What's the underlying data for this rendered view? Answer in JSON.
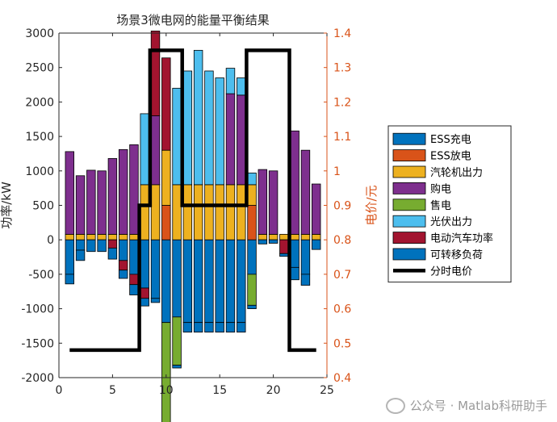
{
  "chart_data": {
    "type": "bar",
    "title": "场景3微电网的能量平衡结果",
    "xlabel": "",
    "ylabel": "功率/kW",
    "y2label": "电价/元",
    "xlim": [
      0,
      25
    ],
    "ylim": [
      -2000,
      3000
    ],
    "y2lim": [
      0.4,
      1.4
    ],
    "xticks": [
      "0",
      "5",
      "10",
      "15",
      "20",
      "25"
    ],
    "yticks": [
      "-2000",
      "-1500",
      "-1000",
      "-500",
      "0",
      "500",
      "1000",
      "1500",
      "2000",
      "2500",
      "3000"
    ],
    "y2ticks": [
      "0.4",
      "0.5",
      "0.6",
      "0.7",
      "0.8",
      "0.9",
      "1",
      "1.1",
      "1.2",
      "1.3",
      "1.4"
    ],
    "hours": [
      1,
      2,
      3,
      4,
      5,
      6,
      7,
      8,
      9,
      10,
      11,
      12,
      13,
      14,
      15,
      16,
      17,
      18,
      19,
      20,
      21,
      22,
      23,
      24
    ],
    "series": [
      {
        "name": "ESS充电",
        "color": "#0072bd",
        "values": [
          -500,
          -150,
          0,
          0,
          0,
          -300,
          -500,
          -700,
          -850,
          -1200,
          -1120,
          -1200,
          -1200,
          -1200,
          -1200,
          -1200,
          -1200,
          -500,
          0,
          0,
          0,
          -400,
          -500,
          0
        ]
      },
      {
        "name": "ESS放电",
        "color": "#d95319",
        "values": [
          0,
          0,
          0,
          0,
          0,
          0,
          0,
          0,
          0,
          500,
          0,
          0,
          0,
          0,
          0,
          0,
          0,
          500,
          0,
          0,
          0,
          0,
          0,
          0
        ]
      },
      {
        "name": "汽轮机出力",
        "color": "#edb120",
        "values": [
          80,
          80,
          80,
          80,
          80,
          80,
          80,
          800,
          800,
          800,
          800,
          800,
          800,
          800,
          800,
          800,
          800,
          300,
          80,
          80,
          80,
          80,
          80,
          80
        ]
      },
      {
        "name": "购电",
        "color": "#7e2f8e",
        "values": [
          1200,
          850,
          930,
          920,
          1100,
          1230,
          1300,
          0,
          1000,
          0,
          0,
          0,
          0,
          0,
          0,
          1320,
          1300,
          0,
          940,
          920,
          0,
          1500,
          1220,
          730
        ]
      },
      {
        "name": "售电",
        "color": "#77ac30",
        "values": [
          0,
          0,
          0,
          0,
          0,
          0,
          0,
          0,
          0,
          -1500,
          -700,
          0,
          0,
          0,
          0,
          0,
          0,
          -450,
          0,
          0,
          0,
          0,
          0,
          0
        ]
      },
      {
        "name": "光伏出力",
        "color": "#4dbeee",
        "values": [
          0,
          0,
          0,
          0,
          0,
          0,
          0,
          1030,
          0,
          0,
          1400,
          1650,
          1950,
          1650,
          1550,
          370,
          250,
          170,
          0,
          0,
          0,
          0,
          0,
          0
        ]
      },
      {
        "name": "电动汽车功率",
        "color": "#a2142f",
        "values": [
          0,
          0,
          0,
          0,
          -120,
          -140,
          -150,
          -150,
          1230,
          1340,
          0,
          0,
          0,
          0,
          0,
          0,
          0,
          0,
          0,
          0,
          -200,
          0,
          0,
          0
        ]
      },
      {
        "name": "可转移负荷",
        "color": "#0072bd",
        "values": [
          -140,
          -150,
          -170,
          -170,
          -160,
          -120,
          -150,
          -110,
          -60,
          -50,
          -40,
          -140,
          -140,
          -140,
          -140,
          -140,
          -140,
          -50,
          -60,
          -50,
          -40,
          -180,
          -160,
          -140
        ]
      },
      {
        "name": "分时电价",
        "color": "#000000",
        "type": "step",
        "values": [
          0.48,
          0.48,
          0.48,
          0.48,
          0.48,
          0.48,
          0.48,
          0.9,
          1.35,
          1.35,
          1.35,
          0.9,
          0.9,
          0.9,
          0.9,
          0.9,
          0.9,
          1.35,
          1.35,
          1.35,
          1.35,
          0.48,
          0.48,
          0.48
        ]
      }
    ],
    "legend_position": "right",
    "grid": false
  },
  "watermark": {
    "text": "公众号 · Matlab科研助手",
    "icon": "wechat-icon"
  }
}
